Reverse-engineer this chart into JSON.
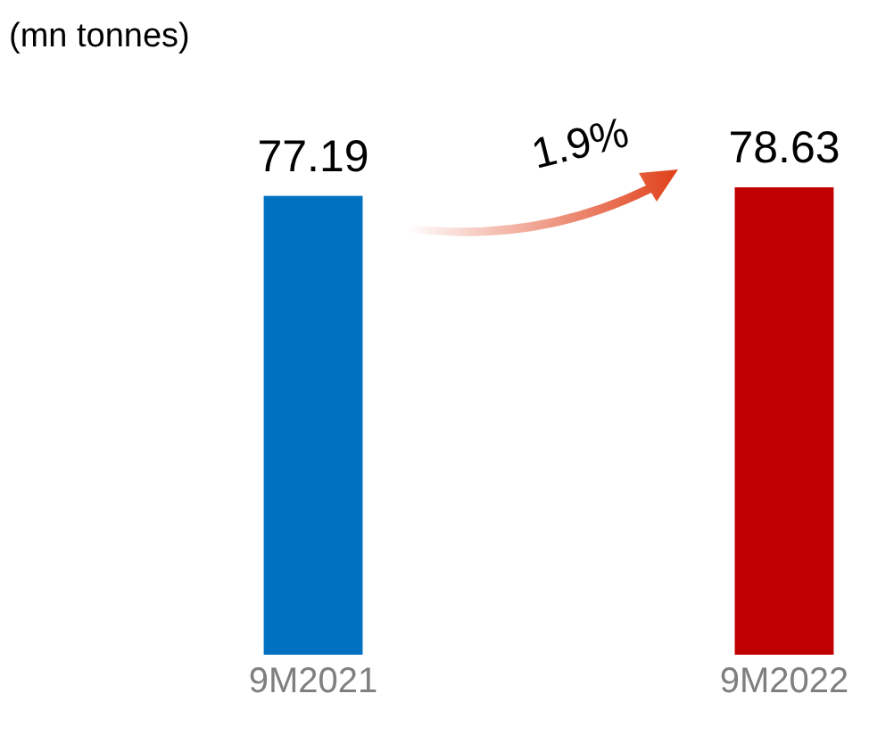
{
  "chart_data": {
    "type": "bar",
    "ylabel": "(mn tonnes)",
    "categories": [
      "9M2021",
      "9M2022"
    ],
    "values": [
      77.19,
      78.63
    ],
    "colors": [
      "#0070c0",
      "#c00000"
    ],
    "data_labels": true,
    "annotations": [
      "1.9%"
    ]
  }
}
